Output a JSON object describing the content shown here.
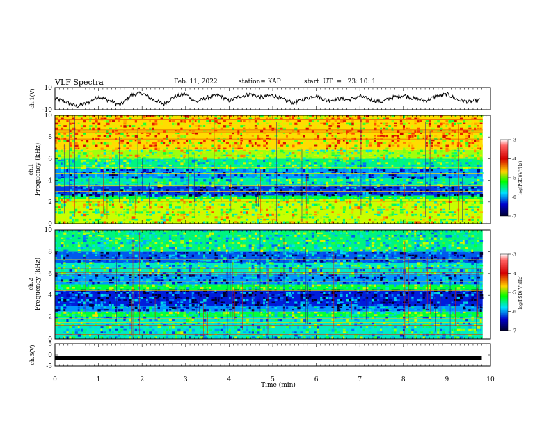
{
  "header": {
    "title": "VLF Spectra",
    "date": "Feb. 11, 2022",
    "station": "station= KAP",
    "start": "start  UT  =   23: 10: 1"
  },
  "colorbar": {
    "label": "log(PSD)(V²/Hz)",
    "ticks": [
      "-3",
      "-4",
      "-5",
      "-6",
      "-7"
    ],
    "colors": [
      "#d40000",
      "#ffd200",
      "#00ff00",
      "#00e0ff",
      "#0000cc",
      "#000030"
    ]
  },
  "chart_data": [
    {
      "type": "line",
      "name": "ch.1 waveform",
      "ylabel": "ch.1(V)",
      "ylim": [
        -10,
        10
      ],
      "yticks": [
        "10",
        "-10"
      ],
      "xlim": [
        0,
        10
      ],
      "x": [
        0,
        0.25,
        0.5,
        0.75,
        1,
        1.25,
        1.5,
        1.75,
        2,
        2.25,
        2.5,
        2.75,
        3,
        3.25,
        3.5,
        3.75,
        4,
        4.25,
        4.5,
        4.75,
        5,
        5.25,
        5.5,
        5.75,
        6,
        6.25,
        6.5,
        6.75,
        7,
        7.25,
        7.5,
        7.75,
        8,
        8.25,
        8.5,
        8.75,
        9,
        9.25,
        9.5,
        9.75
      ],
      "y": [
        0,
        -3,
        -7,
        -4,
        2,
        -2,
        -6,
        3,
        5,
        -1,
        -5,
        2,
        4,
        -3,
        1,
        3,
        -2,
        2,
        4,
        1,
        3,
        -1,
        -4,
        0,
        3,
        -2,
        0,
        -1,
        2,
        -1,
        -3,
        1,
        3,
        0,
        -2,
        2,
        4,
        -1,
        -3,
        -1
      ]
    },
    {
      "type": "heatmap",
      "name": "ch.1 spectrogram",
      "ylabel_prefix": "ch.1",
      "ylabel": "Frequency (kHz)",
      "ylim": [
        0,
        10
      ],
      "yticks": [
        "0",
        "2",
        "4",
        "6",
        "8",
        "10"
      ],
      "xlim": [
        0,
        10
      ],
      "colorscale": "log(PSD)(V²/Hz)",
      "zlim": [
        -7,
        -3
      ],
      "bands_khz": [
        [
          0,
          2.3,
          -4.5
        ],
        [
          2.3,
          2.6,
          -5.0
        ],
        [
          2.6,
          3.5,
          -6.3
        ],
        [
          3.5,
          4.2,
          -5.3
        ],
        [
          4.2,
          5.0,
          -6.0
        ],
        [
          5.0,
          6.0,
          -5.2
        ],
        [
          6.0,
          6.8,
          -4.6
        ],
        [
          6.8,
          10,
          -4.0
        ]
      ]
    },
    {
      "type": "heatmap",
      "name": "ch.2 spectrogram",
      "ylabel_prefix": "ch.2",
      "ylabel": "Frequency (kHz)",
      "ylim": [
        0,
        10
      ],
      "yticks": [
        "0",
        "2",
        "4",
        "6",
        "8",
        "10"
      ],
      "xlim": [
        0,
        10
      ],
      "colorscale": "log(PSD)(V²/Hz)",
      "zlim": [
        -7,
        -3
      ],
      "bands_khz": [
        [
          0,
          2.0,
          -5.4
        ],
        [
          2.0,
          2.5,
          -5.0
        ],
        [
          2.5,
          3.0,
          -6.0
        ],
        [
          3.0,
          4.5,
          -6.4
        ],
        [
          4.5,
          5.0,
          -5.0
        ],
        [
          5.0,
          6.0,
          -6.0
        ],
        [
          6.0,
          7.0,
          -5.4
        ],
        [
          7.0,
          8.0,
          -6.2
        ],
        [
          8.0,
          10,
          -5.2
        ]
      ]
    },
    {
      "type": "line",
      "name": "ch.3 waveform",
      "ylabel": "ch.3(V)",
      "ylim": [
        -5,
        5
      ],
      "yticks": [
        "5",
        "0",
        "-5"
      ],
      "xlim": [
        0,
        10
      ],
      "xlabel": "Time  (min)",
      "xticks": [
        "0",
        "1",
        "2",
        "3",
        "4",
        "5",
        "6",
        "7",
        "8",
        "9",
        "10"
      ],
      "x": [
        0,
        9.8
      ],
      "y": [
        -1.3,
        -1.3
      ]
    }
  ]
}
